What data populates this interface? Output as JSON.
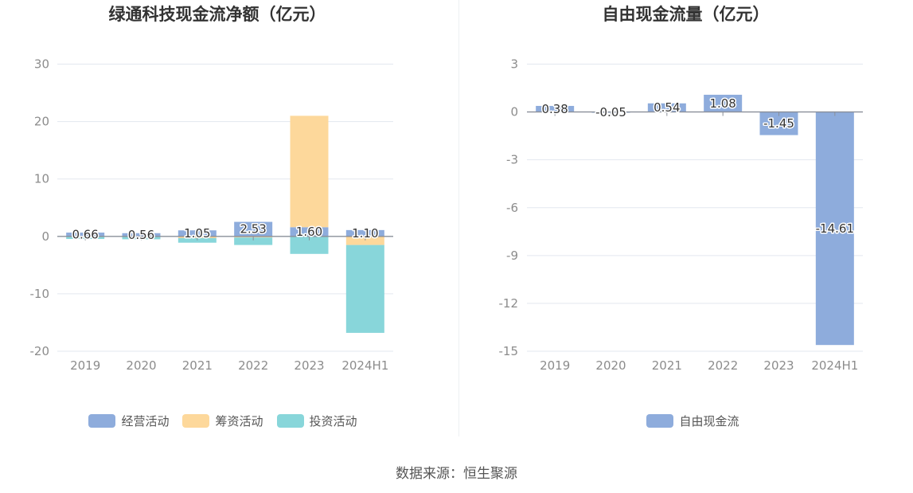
{
  "chart_data": [
    {
      "type": "bar",
      "stacked": true,
      "title": "绿通科技现金流净额（亿元）",
      "categories": [
        "2019",
        "2020",
        "2021",
        "2022",
        "2023",
        "2024H1"
      ],
      "series": [
        {
          "name": "经营活动",
          "color": "#8eacdc",
          "show_labels": true,
          "values": [
            0.66,
            0.56,
            1.05,
            2.53,
            1.6,
            1.1
          ]
        },
        {
          "name": "筹资活动",
          "color": "#fdd89b",
          "show_labels": false,
          "values": [
            -0.1,
            -0.1,
            -0.3,
            -0.2,
            19.4,
            -1.5
          ]
        },
        {
          "name": "投资活动",
          "color": "#88d6da",
          "show_labels": false,
          "values": [
            -0.35,
            -0.4,
            -0.8,
            -1.3,
            -3.05,
            -15.3
          ]
        }
      ],
      "ylim": [
        -20,
        30
      ],
      "yticks": [
        30,
        20,
        10,
        0,
        -10,
        -20
      ],
      "grid": true,
      "legend": "bottom"
    },
    {
      "type": "bar",
      "stacked": false,
      "title": "自由现金流量（亿元）",
      "categories": [
        "2019",
        "2020",
        "2021",
        "2022",
        "2023",
        "2024H1"
      ],
      "series": [
        {
          "name": "自由现金流",
          "color": "#8eacdc",
          "show_labels": true,
          "values": [
            0.38,
            -0.05,
            0.54,
            1.08,
            -1.45,
            -14.61
          ]
        }
      ],
      "ylim": [
        -15,
        3
      ],
      "yticks": [
        3,
        0,
        -3,
        -6,
        -9,
        -12,
        -15
      ],
      "grid": true,
      "legend": "bottom"
    }
  ],
  "footer": {
    "source": "数据来源：恒生聚源"
  }
}
